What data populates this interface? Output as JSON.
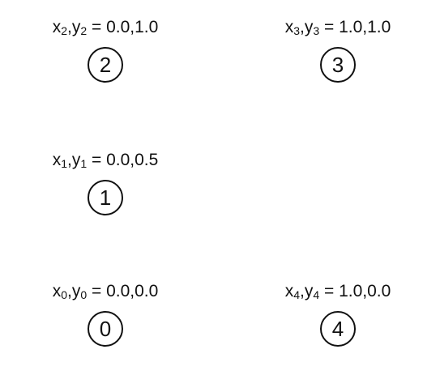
{
  "nodes": [
    {
      "id": "0",
      "label_text": "x0,y0 = 0.0,0.0",
      "x_var": "x",
      "x_sub": "0",
      "y_var": "y",
      "y_sub": "0",
      "values": "= 0.0,0.0"
    },
    {
      "id": "1",
      "label_text": "x1,y1 = 0.0,0.5",
      "x_var": "x",
      "x_sub": "1",
      "y_var": "y",
      "y_sub": "1",
      "values": "= 0.0,0.5"
    },
    {
      "id": "2",
      "label_text": "x2,y2 = 0.0,1.0",
      "x_var": "x",
      "x_sub": "2",
      "y_var": "y",
      "y_sub": "2",
      "values": "= 0.0,1.0"
    },
    {
      "id": "3",
      "label_text": "x3,y3 = 1.0,1.0",
      "x_var": "x",
      "x_sub": "3",
      "y_var": "y",
      "y_sub": "3",
      "values": "= 1.0,1.0"
    },
    {
      "id": "4",
      "label_text": "x4,y4 = 1.0,0.0",
      "x_var": "x",
      "x_sub": "4",
      "y_var": "y",
      "y_sub": "4",
      "values": "= 1.0,0.0"
    }
  ],
  "colors": {
    "stroke": "#111111",
    "background": "#ffffff"
  }
}
